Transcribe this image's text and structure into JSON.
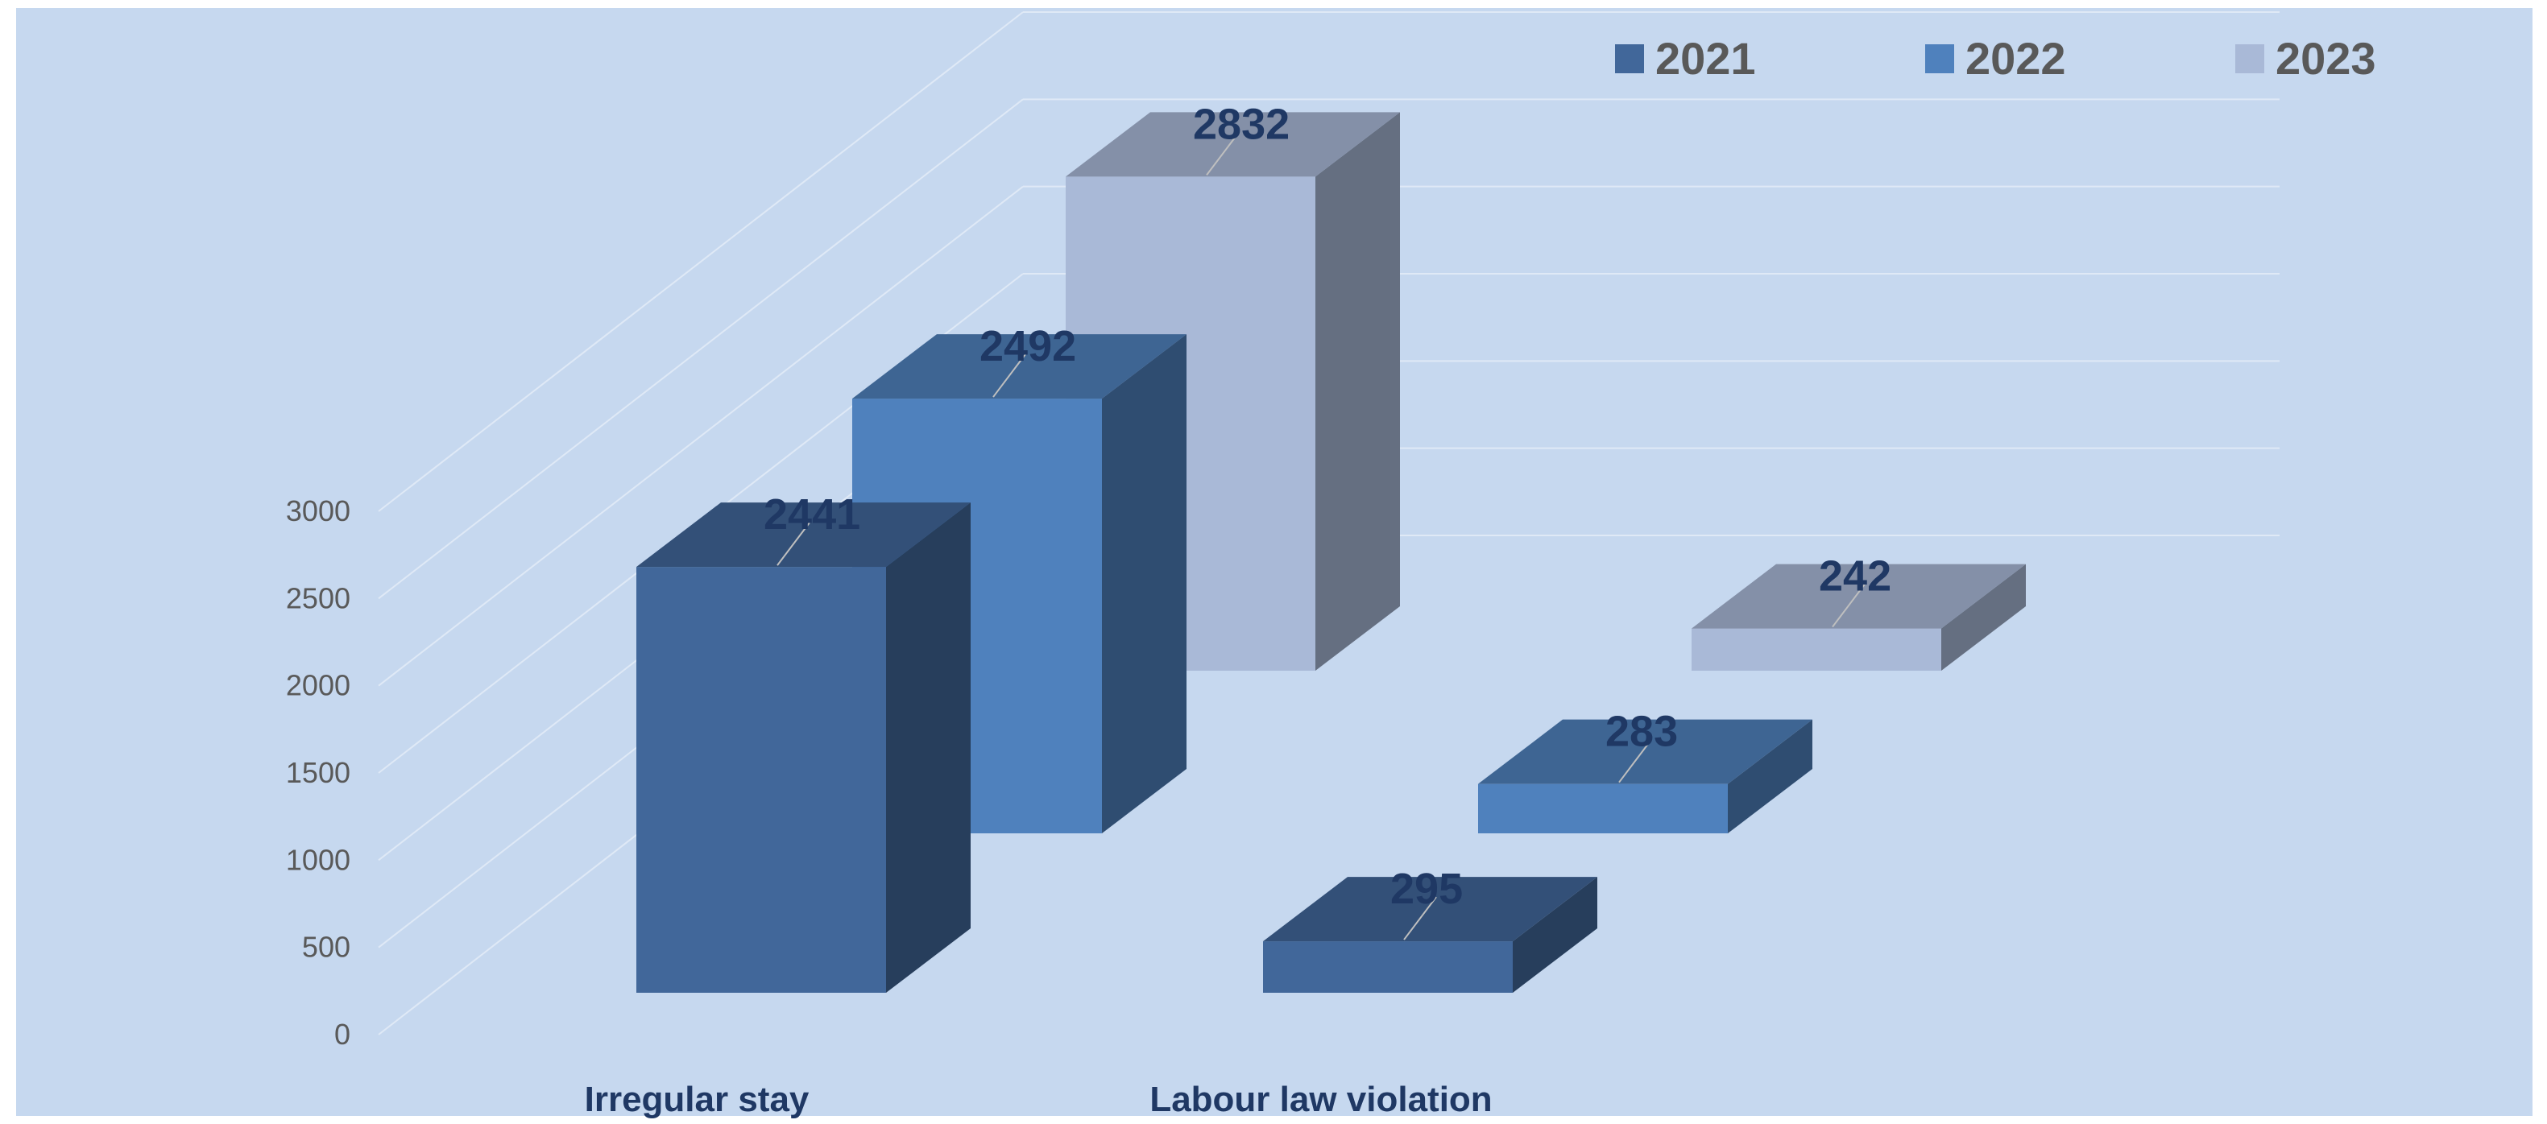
{
  "chart_data": {
    "type": "bar",
    "categories": [
      "Irregular stay",
      "Labour law violation"
    ],
    "series": [
      {
        "name": "2021",
        "values": [
          2441,
          295
        ],
        "color": "#41679a"
      },
      {
        "name": "2022",
        "values": [
          2492,
          283
        ],
        "color": "#4f81bd"
      },
      {
        "name": "2023",
        "values": [
          2832,
          242
        ],
        "color": "#a9b9d7"
      }
    ],
    "ylim": [
      0,
      3000
    ],
    "yticks": [
      "0",
      "500",
      "1000",
      "1500",
      "2000",
      "2500",
      "3000"
    ],
    "legend": "top-right",
    "grid": true,
    "style": "3d-column",
    "background": "#c6d8ef",
    "label_color": "#1f3864"
  }
}
